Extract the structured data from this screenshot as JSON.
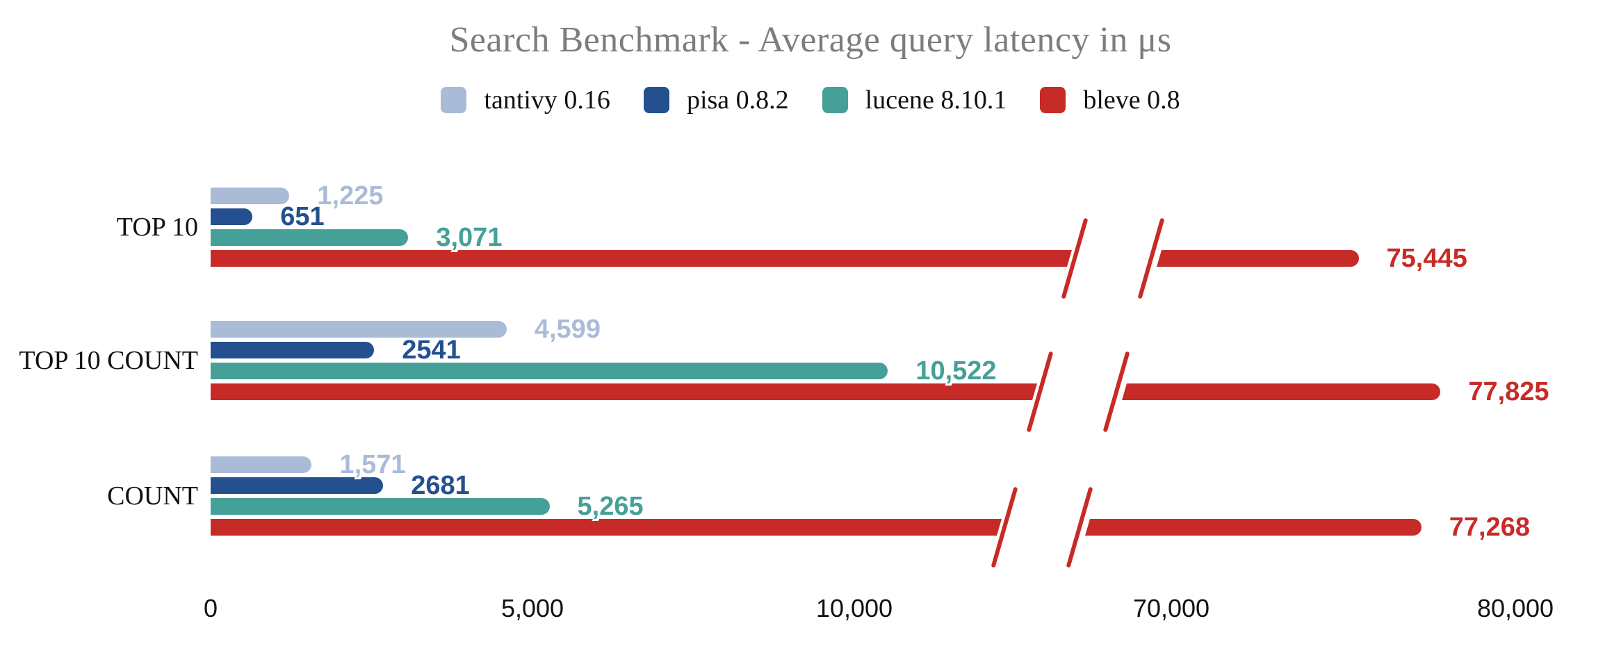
{
  "title": "Search Benchmark - Average query latency in μs",
  "legend": [
    {
      "label": "tantivy 0.16",
      "color": "#aabbd8"
    },
    {
      "label": "pisa 0.8.2",
      "color": "#24508f"
    },
    {
      "label": "lucene 8.10.1",
      "color": "#45a098"
    },
    {
      "label": "bleve 0.8",
      "color": "#c72b27"
    }
  ],
  "chart_data": {
    "type": "bar",
    "orientation": "horizontal",
    "title": "Search Benchmark - Average query latency in μs",
    "categories": [
      "TOP 10",
      "TOP 10 COUNT",
      "COUNT"
    ],
    "series": [
      {
        "name": "tantivy 0.16",
        "color": "#aabbd8",
        "values": [
          1225,
          4599,
          1571
        ],
        "labels": [
          "1,225",
          "4,599",
          "1,571"
        ]
      },
      {
        "name": "pisa 0.8.2",
        "color": "#24508f",
        "values": [
          651,
          2541,
          2681
        ],
        "labels": [
          "651",
          "2541",
          "2681"
        ]
      },
      {
        "name": "lucene 8.10.1",
        "color": "#45a098",
        "values": [
          3071,
          10522,
          5265
        ],
        "labels": [
          "3,071",
          "10,522",
          "5,265"
        ]
      },
      {
        "name": "bleve 0.8",
        "color": "#c72b27",
        "values": [
          75445,
          77825,
          77268
        ],
        "labels": [
          "75,445",
          "77,825",
          "77,268"
        ]
      }
    ],
    "xticks": [
      {
        "value": 0,
        "label": "0"
      },
      {
        "value": 5000,
        "label": "5,000"
      },
      {
        "value": 10000,
        "label": "10,000"
      },
      {
        "value": 70000,
        "label": "70,000"
      },
      {
        "value": 80000,
        "label": "80,000"
      }
    ],
    "axis_break": {
      "from": 12000,
      "to": 70000
    },
    "xlabel": "",
    "ylabel": "",
    "grid": false,
    "legend_position": "top"
  }
}
